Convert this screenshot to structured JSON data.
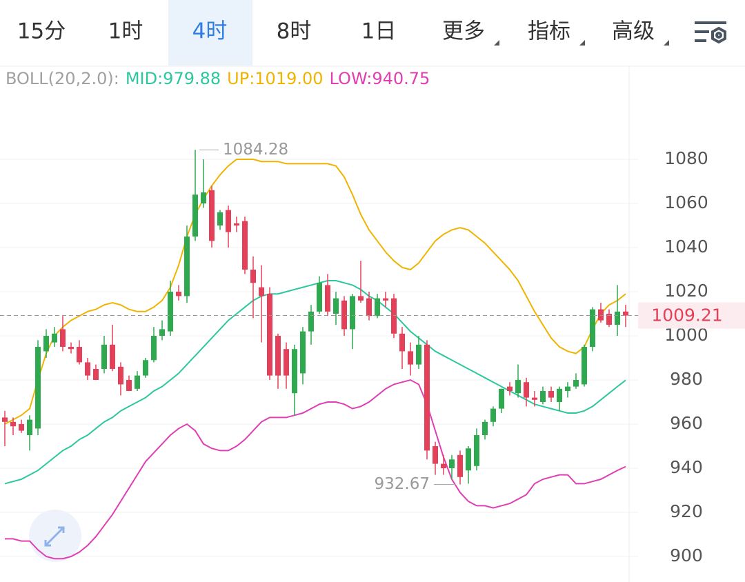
{
  "tabs": [
    "15分",
    "1时",
    "4时",
    "8时",
    "1日",
    "更多",
    "指标",
    "高级"
  ],
  "selected_tab": 2,
  "chart_data": {
    "type": "candlestick",
    "legend_title": "BOLL(20,2.0):",
    "up_color": "#2fa94f",
    "down_color": "#e4405a",
    "open": [
      963,
      961,
      960,
      955,
      958,
      993,
      997,
      1003,
      995,
      995,
      988,
      985,
      985,
      996,
      986,
      980,
      976,
      982,
      989,
      1000,
      1002,
      1020,
      1018,
      1045,
      1060,
      1066,
      1050,
      1057,
      1051,
      1052,
      1030,
      1022,
      1019,
      1000,
      994,
      974,
      983,
      1002,
      1011,
      1023,
      1010,
      1016,
      1003,
      1018,
      1017,
      1009,
      1017,
      1017,
      1001,
      993,
      987,
      996,
      950,
      942,
      940,
      946,
      939,
      941,
      955,
      961,
      967,
      977,
      974,
      979,
      972,
      970,
      975,
      970,
      975,
      977,
      978,
      995,
      1012,
      1010,
      1005,
      1011
    ],
    "high": [
      966,
      963,
      962,
      964,
      998,
      1003,
      1004,
      1009,
      997,
      998,
      990,
      987,
      1000,
      1005,
      988,
      982,
      984,
      990,
      1004,
      1007,
      1025,
      1023,
      1050,
      1084.28,
      1080,
      1068,
      1057,
      1059,
      1054,
      1054,
      1036,
      1032,
      1022,
      1001,
      997,
      996,
      1004,
      1014,
      1027,
      1028,
      1020,
      1018,
      1019,
      1034,
      1020,
      1019,
      1020,
      1019,
      1004,
      997,
      1000,
      998,
      952,
      946,
      946,
      948,
      950,
      958,
      962,
      968,
      976,
      979,
      987,
      981,
      975,
      977,
      977,
      977,
      979,
      983,
      996,
      1013,
      1015,
      1012,
      1023,
      1014
    ],
    "low": [
      950,
      955,
      956,
      948,
      955,
      990,
      995,
      993,
      992,
      987,
      980,
      980,
      983,
      984,
      973,
      975,
      975,
      981,
      988,
      998,
      1000,
      1016,
      1015,
      1043,
      1058,
      1040,
      1048,
      1040,
      1047,
      1028,
      1008,
      997,
      980,
      976,
      976,
      964,
      978,
      996,
      1010,
      1009,
      1005,
      1000,
      994,
      1015,
      1007,
      1008,
      1013,
      999,
      985,
      982,
      985,
      944,
      937,
      937,
      935,
      932.67,
      933,
      939,
      953,
      959,
      965,
      973,
      972,
      968,
      968,
      969,
      970,
      966,
      972,
      976,
      977,
      993,
      1006,
      1004,
      1000,
      1004
    ],
    "close": [
      961,
      959,
      957,
      962,
      995,
      1000,
      1001,
      995,
      994,
      988,
      982,
      980,
      996,
      985,
      978,
      975,
      982,
      989,
      1000,
      1003,
      1020,
      1018,
      1045,
      1064,
      1065,
      1043,
      1056,
      1047,
      1050,
      1030,
      1024,
      1018,
      982,
      982,
      982,
      994,
      1002,
      1011,
      1024,
      1011,
      1017,
      1003,
      1018,
      1016,
      1009,
      1017,
      1016,
      1001,
      993,
      987,
      996,
      948,
      942,
      940,
      944,
      936,
      949,
      955,
      961,
      967,
      976,
      975,
      980,
      972,
      971,
      975,
      972,
      976,
      977,
      980,
      995,
      1012,
      1007,
      1005,
      1011,
      1009.21
    ],
    "series": [
      {
        "name": "MID:979.88",
        "color": "#2cc79e",
        "values": [
          933,
          934,
          935,
          937,
          939,
          942,
          945,
          948,
          950,
          953,
          955,
          958,
          961,
          963,
          966,
          968,
          970,
          972,
          975,
          977,
          980,
          983,
          987,
          991,
          995,
          999,
          1003,
          1007,
          1010,
          1013,
          1016,
          1018,
          1019,
          1019,
          1020,
          1021,
          1022,
          1023,
          1024,
          1025,
          1025,
          1024,
          1023,
          1021,
          1018,
          1016,
          1013,
          1010,
          1006,
          1002,
          999,
          996,
          993,
          991,
          989,
          987,
          985,
          983,
          981,
          979,
          977,
          975,
          973,
          971,
          969,
          968,
          967,
          966,
          965,
          965,
          966,
          968,
          971,
          974,
          977,
          979.88
        ]
      },
      {
        "name": "UP:1019.00",
        "color": "#f0b400",
        "values": [
          960,
          962,
          964,
          967,
          980,
          992,
          1000,
          1004,
          1007,
          1009,
          1011,
          1012,
          1014,
          1015,
          1014,
          1012,
          1011,
          1011,
          1013,
          1016,
          1022,
          1032,
          1045,
          1055,
          1062,
          1068,
          1073,
          1077,
          1080,
          1080,
          1080,
          1079,
          1079,
          1079,
          1078,
          1078,
          1078,
          1078,
          1078,
          1078,
          1077,
          1072,
          1064,
          1055,
          1048,
          1043,
          1038,
          1034,
          1031,
          1030,
          1033,
          1038,
          1043,
          1046,
          1048,
          1049,
          1048,
          1045,
          1042,
          1038,
          1034,
          1030,
          1025,
          1018,
          1011,
          1005,
          999,
          995,
          993,
          992,
          995,
          1003,
          1010,
          1014,
          1016,
          1019
        ]
      },
      {
        "name": "LOW:940.75",
        "color": "#df3fb3",
        "values": [
          908,
          908,
          907,
          907,
          903,
          900,
          899,
          899,
          900,
          902,
          905,
          909,
          914,
          919,
          925,
          931,
          937,
          943,
          947,
          951,
          955,
          958,
          960,
          957,
          951,
          949,
          948,
          948,
          950,
          953,
          957,
          961,
          963,
          963,
          963,
          964,
          965,
          967,
          969,
          970,
          970,
          969,
          967,
          968,
          970,
          973,
          976,
          978,
          979,
          980,
          978,
          969,
          957,
          945,
          935,
          929,
          925,
          923,
          923,
          922,
          923,
          924,
          926,
          928,
          933,
          935,
          936,
          937,
          937,
          933,
          933,
          934,
          935,
          937,
          939,
          940.75
        ]
      }
    ],
    "ylim": [
      888.44,
      1121.88
    ],
    "yticks": [
      900,
      920,
      940,
      960,
      980,
      1000,
      1020,
      1040,
      1060,
      1080
    ],
    "grid": true
  }
}
